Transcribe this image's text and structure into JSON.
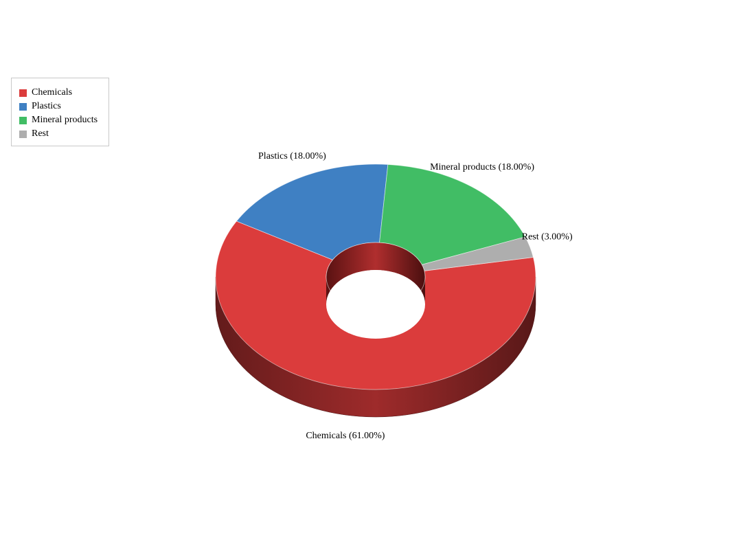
{
  "chart_data": {
    "type": "pie",
    "style": "3d-donut",
    "legend_position": "top-left",
    "series": [
      {
        "name": "Chemicals",
        "value": 61.0,
        "label": "Chemicals (61.00%)",
        "color": "#db3c3c"
      },
      {
        "name": "Plastics",
        "value": 18.0,
        "label": "Plastics (18.00%)",
        "color": "#3f80c3"
      },
      {
        "name": "Mineral products",
        "value": 18.0,
        "label": "Mineral products (18.00%)",
        "color": "#41bd65"
      },
      {
        "name": "Rest",
        "value": 3.0,
        "label": "Rest (3.00%)",
        "color": "#aeaeae"
      }
    ]
  }
}
